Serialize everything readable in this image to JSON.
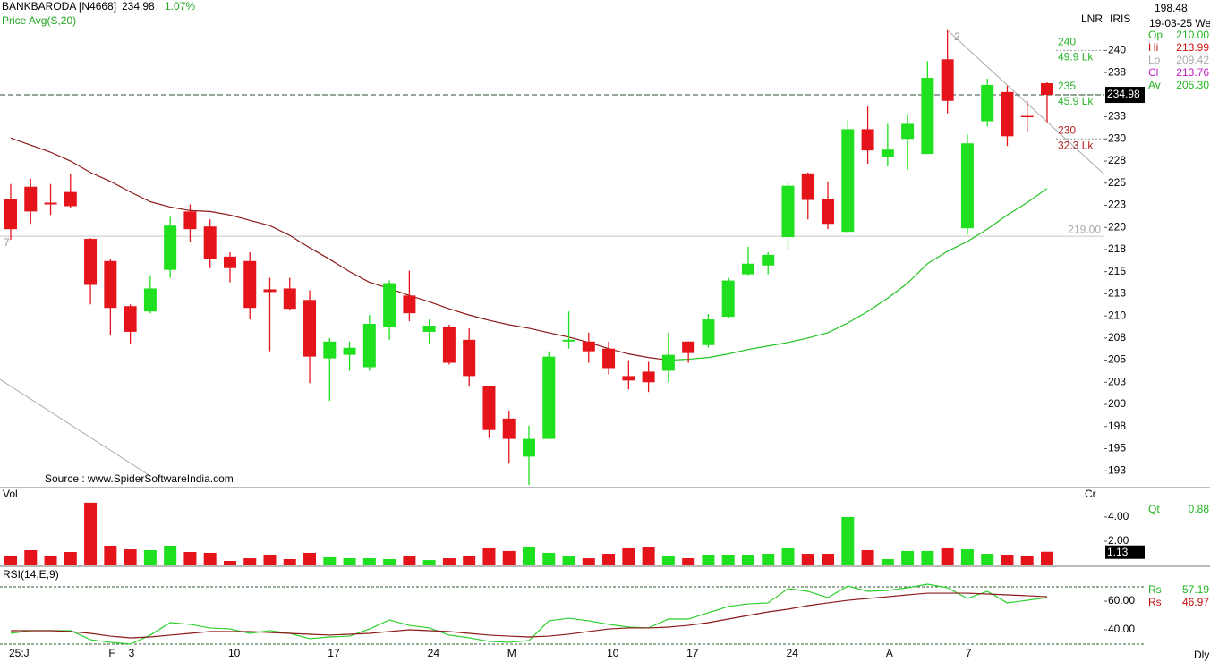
{
  "chart_data": {
    "type": "candlestick",
    "title": "BANKBARODA [N4668]",
    "change": "1.07%",
    "categories": [
      "25:J",
      null,
      null,
      null,
      null,
      "F",
      "3",
      null,
      null,
      null,
      null,
      "10",
      null,
      null,
      null,
      null,
      "17",
      null,
      null,
      null,
      null,
      "24",
      null,
      null,
      null,
      "M",
      null,
      null,
      null,
      null,
      "10",
      null,
      null,
      null,
      "17",
      null,
      null,
      null,
      null,
      "24",
      null,
      null,
      null,
      null,
      "A",
      null,
      null,
      null,
      "7",
      null,
      null,
      null,
      null
    ],
    "open": [
      223.2,
      224.6,
      222.8,
      224.0,
      218.7,
      216.2,
      211.1,
      210.5,
      215.2,
      221.8,
      220.1,
      216.7,
      216.2,
      213.0,
      213.1,
      211.8,
      205.2,
      205.6,
      204.2,
      208.7,
      212.3,
      208.2,
      208.8,
      207.3,
      202.1,
      198.4,
      194.1,
      196.1,
      207.1,
      207.1,
      206.3,
      203.2,
      203.7,
      203.8,
      207.1,
      206.7,
      209.9,
      214.7,
      215.7,
      218.9,
      226.1,
      223.2,
      219.5,
      231.1,
      228.0,
      230.0,
      228.3,
      239.0,
      219.9,
      232.0,
      235.3,
      232.6,
      236.3
    ],
    "high": [
      224.9,
      225.5,
      224.9,
      226.0,
      218.8,
      216.4,
      211.3,
      214.6,
      221.2,
      222.6,
      220.9,
      217.2,
      217.2,
      214.3,
      214.3,
      212.9,
      207.5,
      207.1,
      210.1,
      214.0,
      215.1,
      209.6,
      209.0,
      208.6,
      202.1,
      199.3,
      197.6,
      206.0,
      210.5,
      208.1,
      207.1,
      205.0,
      204.8,
      208.1,
      207.1,
      210.2,
      214.3,
      217.8,
      217.2,
      225.2,
      226.2,
      225.1,
      232.2,
      233.7,
      231.7,
      232.8,
      238.8,
      242.4,
      230.5,
      236.8,
      236.0,
      234.3,
      236.4
    ],
    "low": [
      218.6,
      220.4,
      221.4,
      222.2,
      211.3,
      207.8,
      206.8,
      210.3,
      214.3,
      218.4,
      215.4,
      213.8,
      209.6,
      206.0,
      210.6,
      202.4,
      200.4,
      203.8,
      203.8,
      207.3,
      209.4,
      206.8,
      204.5,
      202.0,
      196.2,
      193.3,
      190.9,
      196.1,
      206.3,
      204.7,
      203.4,
      201.7,
      201.4,
      202.5,
      204.7,
      206.4,
      209.8,
      214.6,
      214.7,
      217.4,
      220.9,
      219.8,
      219.4,
      227.2,
      226.9,
      226.5,
      228.3,
      232.9,
      219.2,
      231.4,
      229.2,
      230.8,
      231.9
    ],
    "close": [
      219.8,
      221.8,
      222.6,
      222.4,
      213.5,
      210.9,
      208.2,
      213.1,
      220.2,
      219.8,
      216.4,
      215.4,
      210.9,
      212.7,
      210.8,
      205.4,
      207.1,
      206.4,
      209.1,
      213.7,
      210.3,
      208.9,
      204.7,
      203.2,
      197.1,
      196.1,
      196.1,
      205.4,
      207.3,
      206.0,
      204.1,
      202.7,
      202.5,
      205.6,
      205.8,
      209.6,
      214.0,
      215.9,
      216.9,
      224.7,
      223.1,
      220.4,
      231.1,
      228.7,
      228.8,
      231.7,
      236.9,
      234.3,
      229.5,
      236.1,
      230.3,
      232.5,
      234.98
    ],
    "colors": {
      "up": "#1fe01f",
      "down": "#e5141b"
    },
    "ylim": [
      190.6,
      245.7
    ],
    "yticks": [
      240,
      {
        "value": 237.5,
        "label": "238"
      },
      {
        "value": 232.5,
        "label": "233"
      },
      230,
      {
        "value": 227.5,
        "label": "228"
      },
      225,
      {
        "value": 222.5,
        "label": "223"
      },
      220,
      {
        "value": 217.5,
        "label": "218"
      },
      215,
      {
        "value": 212.5,
        "label": "213"
      },
      210,
      {
        "value": 207.5,
        "label": "208"
      },
      205,
      {
        "value": 202.5,
        "label": "203"
      },
      200,
      {
        "value": 197.5,
        "label": "198"
      },
      195,
      {
        "value": 192.5,
        "label": "193"
      }
    ],
    "ma": {
      "label": "Price Avg(S,20)",
      "colors": {
        "rising": "#22c322",
        "falling": "#8b1a1a"
      },
      "values": [
        230.1,
        229.3,
        228.5,
        227.5,
        226.2,
        225.2,
        224.0,
        222.9,
        222.3,
        221.9,
        221.8,
        221.4,
        220.8,
        220.2,
        219.1,
        217.7,
        216.4,
        215.0,
        213.8,
        213.1,
        212.3,
        211.6,
        210.8,
        210.1,
        209.5,
        209.0,
        208.6,
        208.1,
        207.6,
        207.0,
        206.3,
        205.7,
        205.3,
        205.0,
        205.1,
        205.3,
        205.7,
        206.2,
        206.6,
        207.0,
        207.5,
        208.1,
        209.2,
        210.5,
        212.0,
        213.7,
        215.9,
        217.3,
        218.4,
        219.8,
        221.4,
        222.8,
        224.4
      ]
    },
    "hlines": [
      {
        "value": 219,
        "label": "219.00"
      }
    ],
    "levels": [
      {
        "value": 240,
        "volume": "49.9 Lk",
        "color": "#2bb52b"
      },
      {
        "value": 235,
        "volume": "45.9 Lk",
        "color": "#2bb52b"
      },
      {
        "value": 230,
        "volume": "32.3 Lk",
        "color": "#b42020"
      }
    ],
    "drawing_labels": [
      "2",
      "7"
    ],
    "source": "Source : www.SpiderSoftwareIndia.com",
    "toolbar": [
      "LNR",
      "IRIS"
    ],
    "info": {
      "price": "198.48",
      "date": "19-03-25 We",
      "rows": [
        {
          "label": "Op",
          "value": "210.00",
          "color": "#22b522"
        },
        {
          "label": "Hi",
          "value": "213.99",
          "color": "#d01010"
        },
        {
          "label": "Lo",
          "value": "209.42",
          "color": "#aaaaaa"
        },
        {
          "label": "Cl",
          "value": "213.76",
          "color": "#c020c0"
        },
        {
          "label": "Av",
          "value": "205.30",
          "color": "#22b522"
        }
      ]
    },
    "volume": {
      "label": "Vol",
      "unit": "Cr",
      "values": [
        0.81,
        1.26,
        0.81,
        1.11,
        5.19,
        1.63,
        1.33,
        1.26,
        1.63,
        1.11,
        1.04,
        0.37,
        0.59,
        0.89,
        0.52,
        1.04,
        0.67,
        0.59,
        0.59,
        0.52,
        0.81,
        0.44,
        0.59,
        0.81,
        1.41,
        1.19,
        1.56,
        1.04,
        0.74,
        0.59,
        0.96,
        1.41,
        1.48,
        0.81,
        0.59,
        0.89,
        0.89,
        0.89,
        0.96,
        1.41,
        0.96,
        0.96,
        4.0,
        1.26,
        0.52,
        1.19,
        1.19,
        1.41,
        1.33,
        0.96,
        0.89,
        0.81,
        1.13
      ],
      "ylim": [
        0,
        6.44
      ],
      "yticks": [
        {
          "value": 4,
          "label": "4.00"
        },
        {
          "value": 2,
          "label": "2.00"
        }
      ],
      "stat": {
        "label": "Qt",
        "value": "0.88",
        "color": "#22b522"
      }
    },
    "rsi": {
      "label": "RSI(14,E,9)",
      "series": [
        {
          "color": "#2bcf2b",
          "values": [
            37.5,
            39.4,
            39.4,
            39.4,
            33.1,
            31.3,
            30.0,
            36.3,
            45.0,
            43.8,
            41.3,
            40.6,
            37.5,
            39.4,
            37.5,
            33.8,
            35.0,
            35.6,
            40.6,
            46.9,
            43.1,
            41.3,
            36.3,
            34.4,
            31.9,
            31.3,
            32.5,
            46.3,
            48.1,
            46.3,
            43.8,
            41.9,
            41.3,
            47.5,
            47.5,
            51.9,
            56.3,
            58.1,
            58.8,
            68.8,
            66.9,
            62.5,
            70.6,
            66.9,
            67.5,
            69.4,
            71.9,
            69.4,
            61.9,
            66.9,
            58.8,
            60.6,
            62.5
          ]
        },
        {
          "color": "#8b1a1a",
          "values": [
            39.4,
            39.4,
            39.4,
            38.8,
            37.5,
            35.6,
            34.4,
            35.0,
            36.3,
            37.5,
            38.8,
            38.8,
            38.8,
            38.1,
            37.5,
            36.9,
            36.3,
            36.9,
            37.5,
            38.8,
            40.0,
            39.4,
            38.8,
            37.5,
            36.3,
            35.6,
            35.0,
            35.6,
            36.9,
            38.8,
            40.6,
            41.3,
            41.3,
            41.9,
            43.1,
            45.0,
            47.5,
            50.0,
            52.5,
            54.4,
            56.9,
            58.8,
            60.6,
            61.9,
            63.1,
            64.4,
            65.6,
            65.6,
            65.6,
            65.0,
            64.4,
            63.8,
            63.1
          ]
        }
      ],
      "ylim": [
        28.75,
        84.4
      ],
      "yticks": [
        {
          "value": 60,
          "label": "60.00"
        },
        {
          "value": 40,
          "label": "40.00"
        }
      ],
      "levels": [
        70,
        30
      ],
      "stats": [
        {
          "label": "Rs",
          "value": "57.19",
          "color": "#22b522"
        },
        {
          "label": "Rs",
          "value": "46.97",
          "color": "#c01010"
        }
      ]
    },
    "period": "Dly"
  }
}
